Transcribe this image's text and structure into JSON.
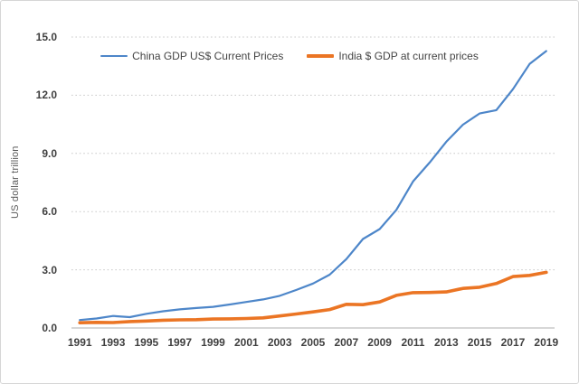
{
  "colors": {
    "china_line": "#4d86c9",
    "india_line": "#eb7524",
    "gridline": "#c9c9c9",
    "axis_line": "#bfbfbf",
    "tick_text": "#3f3f3f",
    "frame_border": "#d6d6d6"
  },
  "chart_data": {
    "type": "line",
    "title": "",
    "xlabel": "",
    "ylabel": "US dollar trillion",
    "ylim": [
      0,
      15
    ],
    "grid": "horizontal-dotted",
    "legend_position": "top-center",
    "x": [
      1991,
      1992,
      1993,
      1994,
      1995,
      1996,
      1997,
      1998,
      1999,
      2000,
      2001,
      2002,
      2003,
      2004,
      2005,
      2006,
      2007,
      2008,
      2009,
      2010,
      2011,
      2012,
      2013,
      2014,
      2015,
      2016,
      2017,
      2018,
      2019
    ],
    "x_tick_labels": [
      "1991",
      "1993",
      "1995",
      "1997",
      "1999",
      "2001",
      "2003",
      "2005",
      "2007",
      "2009",
      "2011",
      "2013",
      "2015",
      "2017",
      "2019"
    ],
    "y_ticks": [
      0,
      3,
      6,
      9,
      12,
      15
    ],
    "y_tick_labels": [
      "0.0",
      "3.0",
      "6.0",
      "9.0",
      "12.0",
      "15.0"
    ],
    "series": [
      {
        "name": "China GDP US$ Current Prices",
        "color": "#4d86c9",
        "values": [
          0.41,
          0.49,
          0.62,
          0.56,
          0.73,
          0.86,
          0.96,
          1.03,
          1.09,
          1.21,
          1.34,
          1.47,
          1.66,
          1.96,
          2.29,
          2.75,
          3.55,
          4.59,
          5.1,
          6.09,
          7.55,
          8.53,
          9.6,
          10.48,
          11.06,
          11.23,
          12.31,
          13.61,
          14.28
        ]
      },
      {
        "name": "India $ GDP at current prices",
        "color": "#eb7524",
        "values": [
          0.27,
          0.29,
          0.28,
          0.33,
          0.36,
          0.4,
          0.42,
          0.43,
          0.46,
          0.47,
          0.49,
          0.52,
          0.62,
          0.72,
          0.83,
          0.95,
          1.22,
          1.2,
          1.34,
          1.68,
          1.82,
          1.83,
          1.86,
          2.04,
          2.1,
          2.29,
          2.65,
          2.71,
          2.87
        ]
      }
    ]
  }
}
